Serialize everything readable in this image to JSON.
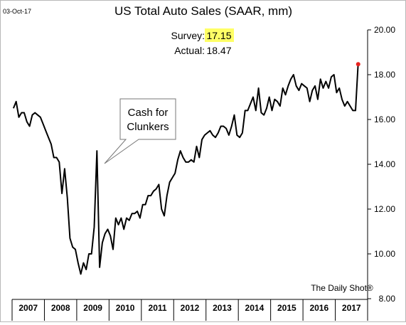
{
  "header": {
    "date_stamp": "03-Oct-17",
    "title": "US Total Auto Sales (SAAR, mm)"
  },
  "annotations": {
    "survey_label": "Survey:",
    "survey_value": "17.15",
    "actual_label": "Actual:",
    "actual_value": "18.47",
    "callout_line1": "Cash for",
    "callout_line2": "Clunkers",
    "credit": "The Daily Shot®"
  },
  "colors": {
    "line": "#000000",
    "latest_point": "#e8231f",
    "survey_highlight": "#ffff66",
    "axis": "#000000"
  },
  "chart_data": {
    "type": "line",
    "title": "US Total Auto Sales (SAAR, mm)",
    "xlabel": "",
    "ylabel": "",
    "ylim": [
      8,
      20
    ],
    "yticks": [
      "20.00",
      "18.00",
      "16.00",
      "14.00",
      "12.00",
      "10.00",
      "8.00"
    ],
    "y_axis_position": "right",
    "grid": false,
    "legend": "none",
    "years": [
      "2007",
      "2008",
      "2009",
      "2010",
      "2011",
      "2012",
      "2013",
      "2014",
      "2015",
      "2016",
      "2017"
    ],
    "x_start": "2007-01",
    "x_end": "2017-09",
    "series": [
      {
        "values": [
          16.5,
          16.8,
          16.1,
          16.3,
          16.3,
          15.9,
          15.7,
          16.2,
          16.3,
          16.2,
          16.1,
          15.8,
          15.5,
          15.2,
          14.9,
          14.3,
          14.3,
          14.1,
          12.7,
          13.8,
          12.5,
          10.7,
          10.3,
          10.2,
          9.6,
          9.1,
          9.6,
          9.3,
          10.0,
          10.0,
          11.2,
          14.6,
          9.4,
          10.5,
          10.9,
          11.1,
          10.8,
          10.2,
          11.6,
          11.3,
          11.6,
          11.1,
          11.6,
          11.5,
          11.8,
          11.8,
          11.9,
          11.6,
          12.2,
          12.2,
          12.6,
          12.6,
          12.8,
          12.9,
          13.1,
          12.0,
          11.7,
          12.6,
          13.2,
          13.4,
          13.6,
          14.2,
          14.6,
          14.3,
          14.1,
          14.1,
          14.2,
          14.1,
          14.8,
          14.3,
          15.1,
          15.3,
          15.4,
          15.5,
          15.3,
          15.2,
          15.4,
          15.7,
          15.7,
          15.6,
          15.3,
          15.7,
          16.2,
          15.3,
          15.2,
          15.4,
          16.4,
          16.4,
          16.7,
          17.0,
          16.4,
          17.4,
          16.3,
          16.2,
          16.5,
          17.0,
          16.4,
          16.9,
          16.8,
          16.6,
          17.4,
          17.1,
          17.5,
          17.8,
          18.0,
          17.5,
          17.3,
          17.6,
          17.5,
          17.4,
          16.8,
          17.3,
          17.5,
          16.9,
          17.8,
          17.4,
          17.7,
          17.4,
          17.9,
          18.0,
          17.2,
          17.4,
          16.9,
          16.6,
          16.8,
          16.6,
          16.4,
          16.4,
          18.5
        ]
      }
    ],
    "latest_point": {
      "date": "2017-09",
      "value": 18.47
    }
  }
}
